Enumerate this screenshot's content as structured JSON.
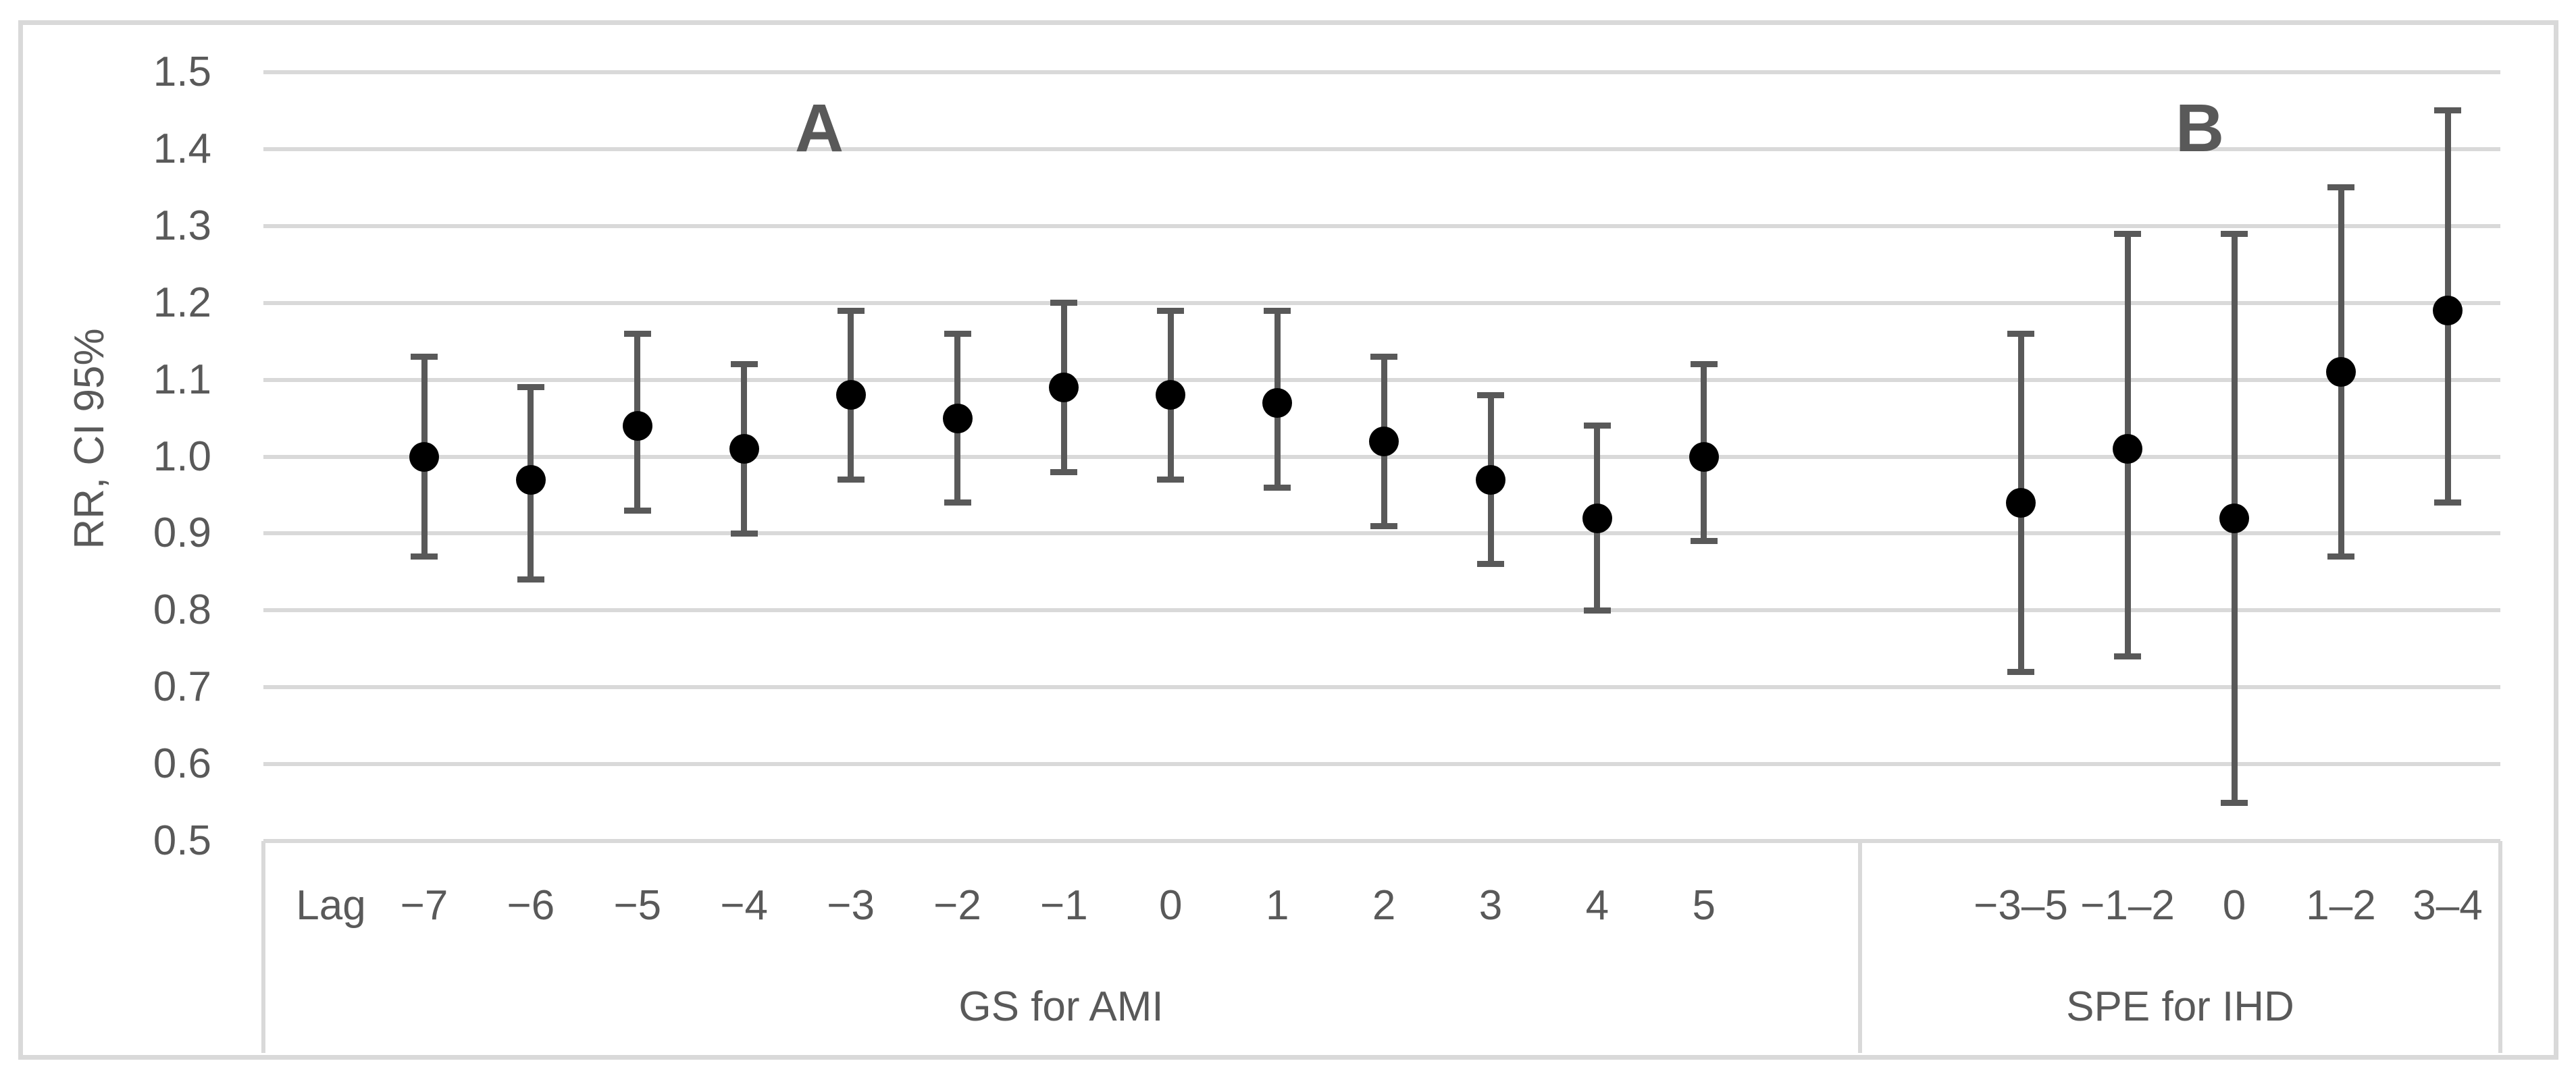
{
  "figure": {
    "panel_a_title": "A",
    "panel_b_title": "B",
    "y_axis": {
      "title": "RR, CI 95%",
      "min": 0.5,
      "max": 1.5,
      "step": 0.1
    },
    "x_axis": {
      "prefix_label": "Lag",
      "group_a_label": "GS for AMI",
      "group_b_label": "SPE for IHD"
    }
  },
  "colors": {
    "point": "#000000",
    "error_bar": "#595959",
    "gridline": "#d9d9d9",
    "border": "#d9d9d9",
    "text": "#595959",
    "background": "#ffffff"
  },
  "chart_data": {
    "type": "scatter",
    "subtype": "point_estimates_with_95ci_error_bars",
    "title": "",
    "xlabel": "",
    "ylabel": "RR, CI 95%",
    "ylim": [
      0.5,
      1.5
    ],
    "grid": true,
    "legend_position": "none",
    "y_ticks": [
      "1.5",
      "1.4",
      "1.3",
      "1.2",
      "1.1",
      "1.0",
      "0.9",
      "0.8",
      "0.7",
      "0.6",
      "0.5"
    ],
    "panels": [
      {
        "panel_label": "A",
        "group_label": "GS for AMI",
        "x_prefix": "Lag",
        "categories": [
          "−7",
          "−6",
          "−5",
          "−4",
          "−3",
          "−2",
          "−1",
          "0",
          "1",
          "2",
          "3",
          "4",
          "5"
        ],
        "rr": [
          1.0,
          0.97,
          1.04,
          1.01,
          1.08,
          1.05,
          1.09,
          1.08,
          1.07,
          1.02,
          0.97,
          0.92,
          1.0
        ],
        "ci_low": [
          0.87,
          0.84,
          0.93,
          0.9,
          0.97,
          0.94,
          0.98,
          0.97,
          0.96,
          0.91,
          0.86,
          0.8,
          0.89
        ],
        "ci_high": [
          1.13,
          1.09,
          1.16,
          1.12,
          1.19,
          1.16,
          1.2,
          1.19,
          1.19,
          1.13,
          1.08,
          1.04,
          1.12
        ]
      },
      {
        "panel_label": "B",
        "group_label": "SPE for IHD",
        "categories": [
          "−3–5",
          "−1–2",
          "0",
          "1–2",
          "3–4"
        ],
        "rr": [
          0.94,
          1.01,
          0.92,
          1.11,
          1.19
        ],
        "ci_low": [
          0.72,
          0.74,
          0.55,
          0.87,
          0.94
        ],
        "ci_high": [
          1.16,
          1.29,
          1.29,
          1.35,
          1.45
        ]
      }
    ]
  }
}
